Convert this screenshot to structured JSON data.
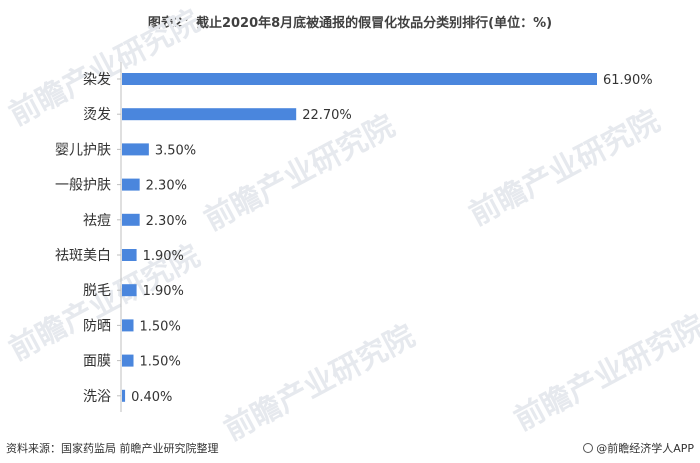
{
  "page": {
    "title": "图表2：截止2020年8月底被通报的假冒化妆品分类别排行(单位：%)",
    "source": "资料来源：国家药监局 前瞻产业研究院整理",
    "brand": "@前瞻经济学人APP",
    "watermark_text": "前瞻产业研究院"
  },
  "chart_data": {
    "type": "bar",
    "orientation": "horizontal",
    "title": "图表2：截止2020年8月底被通报的假冒化妆品分类别排行(单位：%)",
    "xlabel": "",
    "ylabel": "",
    "categories": [
      "染发",
      "烫发",
      "婴儿护肤",
      "一般护肤",
      "祛痘",
      "祛斑美白",
      "脱毛",
      "防晒",
      "面膜",
      "洗浴"
    ],
    "values": [
      61.9,
      22.7,
      3.5,
      2.3,
      2.3,
      1.9,
      1.9,
      1.5,
      1.5,
      0.4
    ],
    "value_labels": [
      "61.90%",
      "22.70%",
      "3.50%",
      "2.30%",
      "2.30%",
      "1.90%",
      "1.90%",
      "1.50%",
      "1.50%",
      "0.40%"
    ],
    "xlim": [
      0,
      61.9
    ],
    "grid": false,
    "legend": "none",
    "bar_color": "#4a86dd"
  }
}
